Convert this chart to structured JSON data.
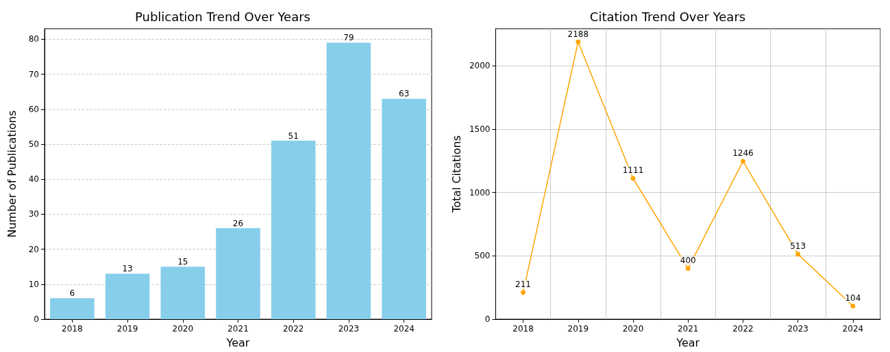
{
  "chart_data": [
    {
      "type": "bar",
      "title": "Publication Trend Over Years",
      "xlabel": "Year",
      "ylabel": "Number of Publications",
      "categories": [
        "2018",
        "2019",
        "2020",
        "2021",
        "2022",
        "2023",
        "2024"
      ],
      "values": [
        6,
        13,
        15,
        26,
        51,
        79,
        63
      ],
      "color": "#87ceeb",
      "ylim": [
        0,
        83
      ],
      "yticks": [
        0,
        10,
        20,
        30,
        40,
        50,
        60,
        70,
        80
      ],
      "grid": "y",
      "data_labels": true
    },
    {
      "type": "line",
      "title": "Citation Trend Over Years",
      "xlabel": "Year",
      "ylabel": "Total Citations",
      "categories": [
        "2018",
        "2019",
        "2020",
        "2021",
        "2022",
        "2023",
        "2024"
      ],
      "values": [
        211,
        2188,
        1111,
        400,
        1246,
        513,
        104
      ],
      "color": "#ffa500",
      "marker": "circle",
      "ylim": [
        0,
        2292
      ],
      "yticks": [
        0,
        500,
        1000,
        1500,
        2000
      ],
      "grid": true,
      "data_labels": true
    }
  ]
}
